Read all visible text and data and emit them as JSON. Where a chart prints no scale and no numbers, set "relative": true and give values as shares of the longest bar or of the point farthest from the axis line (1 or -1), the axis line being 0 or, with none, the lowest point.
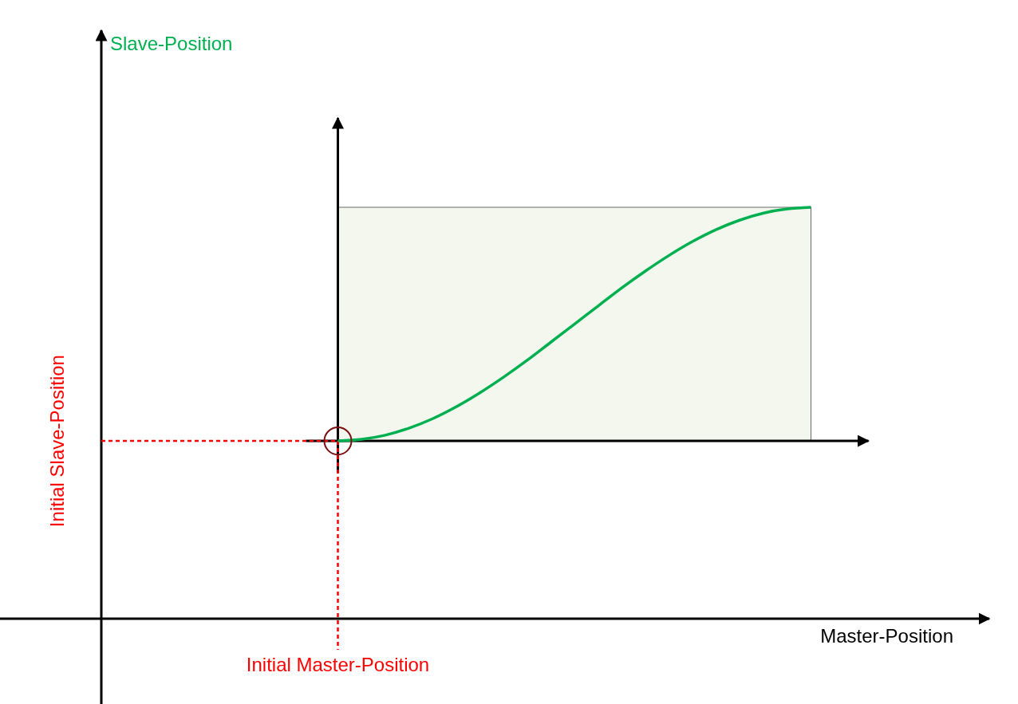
{
  "chart_data": {
    "type": "line",
    "relative": true,
    "xlabel": "Master-Position",
    "categories": [
      null,
      null,
      null,
      null,
      null,
      null,
      null,
      null,
      null,
      null,
      null,
      null,
      null,
      null,
      null,
      null,
      null,
      null,
      null,
      null,
      null,
      null,
      null,
      null,
      null,
      null,
      null,
      null,
      null,
      null,
      null,
      null,
      null,
      null,
      null,
      null,
      null,
      null
    ],
    "series": [
      {
        "color": "#00b050",
        "values": [
          null,
          null,
          null,
          null,
          null,
          null,
          null,
          null,
          null,
          null,
          0.432,
          0.436,
          0.446,
          0.463,
          0.486,
          0.515,
          0.549,
          0.587,
          0.628,
          0.672,
          0.716,
          0.76,
          0.804,
          0.845,
          0.883,
          0.917,
          0.946,
          0.969,
          0.986,
          0.996,
          1.0,
          null,
          null,
          null,
          null,
          null,
          null,
          null
        ]
      }
    ],
    "ref_lines": [
      {
        "axis": "y",
        "value": 0.432,
        "label": "Initial Slave-Position",
        "color": "#ff0000",
        "line_style": "dashed"
      }
    ],
    "annotations": [
      "Slave-Position",
      "Initial Master-Position"
    ],
    "marker": "none",
    "line_style": "solid"
  }
}
